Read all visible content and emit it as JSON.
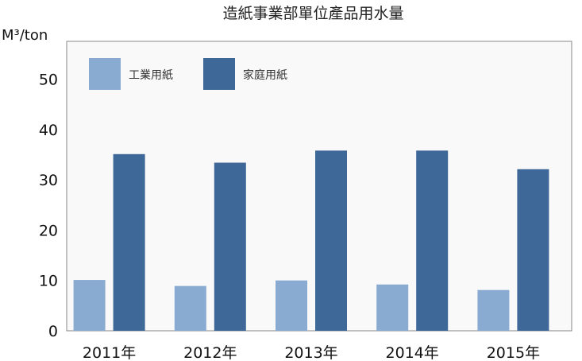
{
  "chart_data": {
    "type": "bar",
    "title": "造紙事業部單位產品用水量",
    "xlabel": "",
    "ylabel": "M³/ton",
    "categories": [
      "2011年",
      "2012年",
      "2013年",
      "2014年",
      "2015年"
    ],
    "series": [
      {
        "name": "工業用紙",
        "color": "#8aabd1",
        "values": [
          10.1,
          8.9,
          10.0,
          9.2,
          8.1
        ]
      },
      {
        "name": "家庭用紙",
        "color": "#3d6898",
        "values": [
          35.1,
          33.4,
          35.8,
          35.8,
          32.1
        ]
      }
    ],
    "yticks": [
      0,
      10,
      20,
      30,
      40,
      50
    ],
    "ylim": [
      0,
      57.5
    ],
    "grid": false,
    "legend": "top-left",
    "plot_background": "#f9f9f9"
  }
}
